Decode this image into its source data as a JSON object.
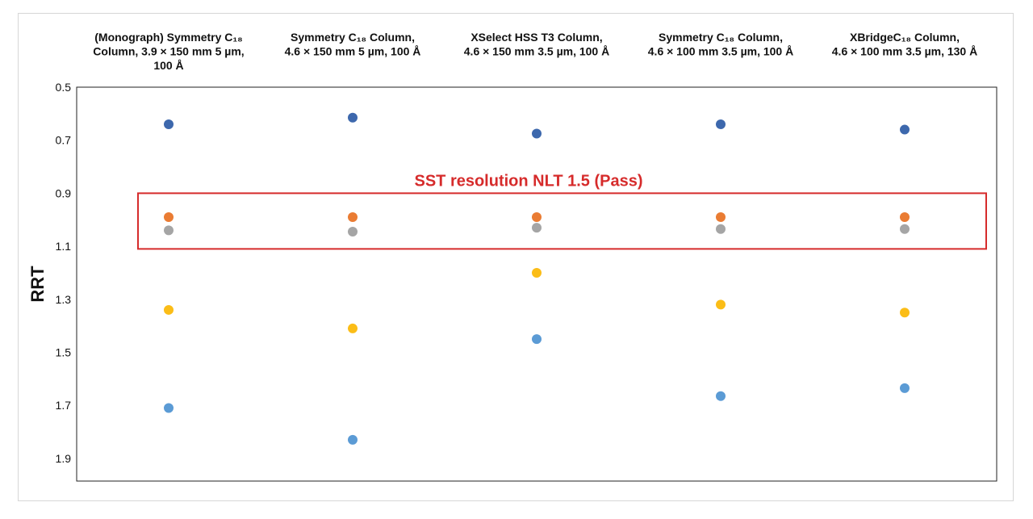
{
  "chart_data": {
    "type": "scatter",
    "ylabel": "RRT",
    "y_reversed": true,
    "ylim": [
      0.5,
      2.0
    ],
    "yticks": [
      "0.5",
      "0.7",
      "0.9",
      "1.1",
      "1.3",
      "1.5",
      "1.7",
      "1.9"
    ],
    "categories": [
      {
        "line1": "(Monograph) Symmetry C₁₈",
        "line2": "Column, 3.9 × 150 mm 5 µm,",
        "line3": "100 Å"
      },
      {
        "line1": "Symmetry C₁₈ Column,",
        "line2": "4.6 × 150 mm 5 µm, 100 Å",
        "line3": ""
      },
      {
        "line1": "XSelect HSS T3 Column,",
        "line2": "4.6 × 150 mm 3.5 µm, 100 Å",
        "line3": ""
      },
      {
        "line1": "Symmetry C₁₈ Column,",
        "line2": "4.6 × 100 mm 3.5 µm, 100 Å",
        "line3": ""
      },
      {
        "line1": "XBridgeC₁₈ Column,",
        "line2": "4.6 × 100 mm 3.5 µm, 130 Å",
        "line3": ""
      }
    ],
    "series": [
      {
        "color": "#3d68ad",
        "values": [
          0.64,
          0.615,
          0.675,
          0.64,
          0.66
        ]
      },
      {
        "color": "#ea7c33",
        "values": [
          0.99,
          0.99,
          0.99,
          0.99,
          0.99
        ]
      },
      {
        "color": "#a5a5a5",
        "values": [
          1.04,
          1.045,
          1.03,
          1.035,
          1.035
        ]
      },
      {
        "color": "#fbbd17",
        "values": [
          1.34,
          1.41,
          1.2,
          1.32,
          1.35
        ]
      },
      {
        "color": "#5b9bd5",
        "values": [
          1.71,
          1.83,
          1.45,
          1.665,
          1.635
        ]
      }
    ],
    "annotation": {
      "text": "SST resolution NLT 1.5 (Pass)",
      "color": "#d62b2b",
      "y_range": [
        0.9,
        1.11
      ]
    },
    "grid": false,
    "legend": "none"
  }
}
